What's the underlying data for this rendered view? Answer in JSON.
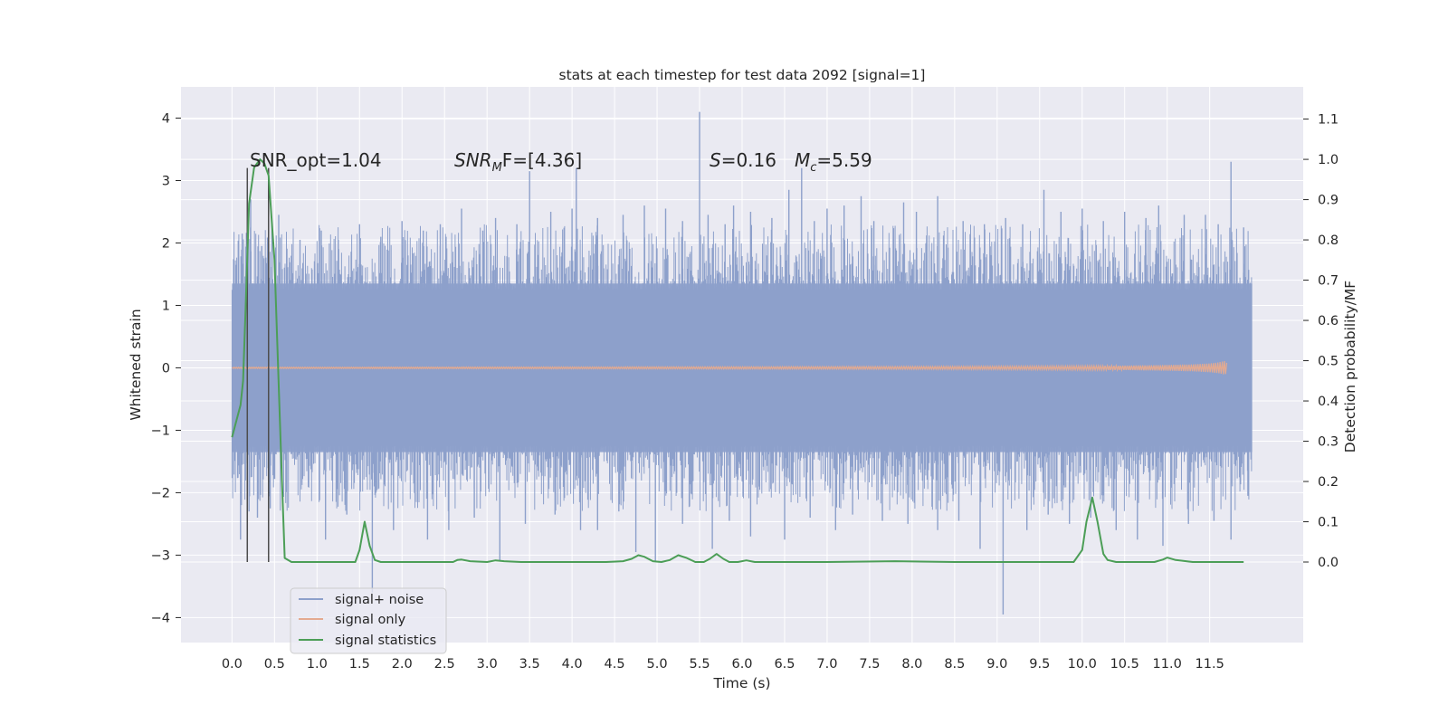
{
  "chart_data": {
    "type": "line",
    "title": "stats at each timestep for test data 2092 [signal=1]",
    "xlabel": "Time (s)",
    "ylabel": "Whitened strain",
    "y2label": "Detection probability/MF",
    "xlim": [
      -0.6,
      12.6
    ],
    "ylim": [
      -4.4,
      4.5
    ],
    "y2lim": [
      -0.2,
      1.18
    ],
    "grid": true,
    "legend_position": "lower-left",
    "x_ticks": [
      "0.0",
      "0.5",
      "1.0",
      "1.5",
      "2.0",
      "2.5",
      "3.0",
      "3.5",
      "4.0",
      "4.5",
      "5.0",
      "5.5",
      "6.0",
      "6.5",
      "7.0",
      "7.5",
      "8.0",
      "8.5",
      "9.0",
      "9.5",
      "10.0",
      "10.5",
      "11.0",
      "11.5"
    ],
    "y_ticks": [
      "4",
      "3",
      "2",
      "1",
      "0",
      "−1",
      "−2",
      "−3",
      "−4"
    ],
    "y2_ticks": [
      "1.1",
      "1.0",
      "0.9",
      "0.8",
      "0.7",
      "0.6",
      "0.5",
      "0.4",
      "0.3",
      "0.2",
      "0.1",
      "0.0"
    ],
    "annotations": {
      "snr_opt": "SNR_opt=1.04",
      "snr_mf_italic": "SNR",
      "snr_mf_sub": "M",
      "snr_mf_rest": "F=[4.36]",
      "s_italic": "S",
      "s_rest": "=0.16",
      "mc_italic": "M",
      "mc_sub": "c",
      "mc_rest": "=5.59"
    },
    "markers_x": [
      0.18,
      0.43
    ],
    "series": [
      {
        "name": "signal+ noise",
        "color": "#8da0cb",
        "duration": 12.0,
        "band": [
          -1.35,
          1.35
        ],
        "peaks": [
          [
            0.05,
            1.65
          ],
          [
            0.12,
            2.15
          ],
          [
            0.22,
            2.7
          ],
          [
            0.35,
            1.95
          ],
          [
            0.47,
            2.3
          ],
          [
            0.55,
            2.45
          ],
          [
            0.8,
            2.05
          ],
          [
            1.05,
            2.2
          ],
          [
            1.25,
            2.05
          ],
          [
            1.5,
            2.3
          ],
          [
            1.75,
            2.1
          ],
          [
            2.0,
            2.35
          ],
          [
            2.25,
            2.2
          ],
          [
            2.45,
            2.3
          ],
          [
            2.7,
            2.55
          ],
          [
            2.95,
            2.2
          ],
          [
            3.1,
            2.4
          ],
          [
            3.35,
            2.3
          ],
          [
            3.5,
            3.15
          ],
          [
            3.75,
            2.5
          ],
          [
            4.0,
            2.55
          ],
          [
            4.05,
            3.2
          ],
          [
            4.3,
            2.4
          ],
          [
            4.6,
            2.45
          ],
          [
            4.85,
            2.6
          ],
          [
            5.1,
            2.55
          ],
          [
            5.3,
            2.35
          ],
          [
            5.5,
            4.1
          ],
          [
            5.6,
            2.45
          ],
          [
            5.8,
            2.3
          ],
          [
            5.9,
            2.6
          ],
          [
            6.1,
            2.5
          ],
          [
            6.35,
            2.4
          ],
          [
            6.55,
            2.85
          ],
          [
            6.7,
            3.2
          ],
          [
            6.85,
            2.35
          ],
          [
            7.0,
            2.55
          ],
          [
            7.2,
            2.6
          ],
          [
            7.4,
            2.75
          ],
          [
            7.55,
            2.35
          ],
          [
            7.9,
            2.65
          ],
          [
            8.05,
            2.5
          ],
          [
            8.3,
            2.75
          ],
          [
            8.6,
            2.35
          ],
          [
            8.85,
            2.3
          ],
          [
            9.1,
            2.4
          ],
          [
            9.3,
            2.3
          ],
          [
            9.55,
            2.85
          ],
          [
            9.75,
            2.5
          ],
          [
            10.0,
            2.55
          ],
          [
            10.25,
            2.35
          ],
          [
            10.5,
            2.5
          ],
          [
            10.75,
            2.4
          ],
          [
            10.9,
            2.6
          ],
          [
            11.2,
            2.45
          ],
          [
            11.45,
            2.45
          ],
          [
            11.6,
            2.3
          ],
          [
            11.75,
            3.3
          ],
          [
            11.9,
            2.25
          ]
        ],
        "troughs": [
          [
            0.1,
            -2.75
          ],
          [
            0.2,
            -2.3
          ],
          [
            0.3,
            -2.4
          ],
          [
            0.45,
            -2.25
          ],
          [
            1.1,
            -2.75
          ],
          [
            1.35,
            -2.35
          ],
          [
            1.65,
            -3.6
          ],
          [
            1.9,
            -2.6
          ],
          [
            2.3,
            -2.75
          ],
          [
            2.55,
            -2.6
          ],
          [
            2.85,
            -2.4
          ],
          [
            3.15,
            -3.1
          ],
          [
            3.45,
            -2.5
          ],
          [
            3.8,
            -2.35
          ],
          [
            4.1,
            -2.6
          ],
          [
            4.3,
            -2.6
          ],
          [
            4.55,
            -2.3
          ],
          [
            4.75,
            -2.95
          ],
          [
            4.98,
            -3.1
          ],
          [
            5.3,
            -2.5
          ],
          [
            5.65,
            -2.9
          ],
          [
            5.85,
            -2.45
          ],
          [
            6.1,
            -2.7
          ],
          [
            6.5,
            -2.75
          ],
          [
            6.8,
            -2.4
          ],
          [
            7.1,
            -2.6
          ],
          [
            7.3,
            -2.35
          ],
          [
            7.65,
            -2.45
          ],
          [
            7.95,
            -2.5
          ],
          [
            8.3,
            -2.6
          ],
          [
            8.55,
            -2.45
          ],
          [
            8.8,
            -2.9
          ],
          [
            9.07,
            -3.95
          ],
          [
            9.35,
            -2.6
          ],
          [
            9.6,
            -2.35
          ],
          [
            9.85,
            -2.5
          ],
          [
            10.1,
            -2.4
          ],
          [
            10.4,
            -2.6
          ],
          [
            10.65,
            -2.75
          ],
          [
            10.95,
            -2.85
          ],
          [
            11.25,
            -2.5
          ],
          [
            11.55,
            -2.45
          ],
          [
            11.75,
            -2.75
          ],
          [
            11.95,
            -2.05
          ]
        ]
      },
      {
        "name": "signal only",
        "color": "#e4aa90",
        "x": [
          0.0,
          2.0,
          4.0,
          6.0,
          8.0,
          9.5,
          10.5,
          11.0,
          11.3,
          11.5,
          11.6,
          11.65,
          11.68,
          11.7
        ],
        "amp": [
          0.01,
          0.012,
          0.015,
          0.018,
          0.022,
          0.028,
          0.035,
          0.045,
          0.055,
          0.07,
          0.085,
          0.1,
          0.11,
          0.08
        ]
      },
      {
        "name": "signal statistics",
        "color": "#4c9e57",
        "x": [
          0.0,
          0.1,
          0.13,
          0.16,
          0.2,
          0.26,
          0.33,
          0.38,
          0.43,
          0.5,
          0.58,
          0.62,
          0.7,
          1.0,
          1.2,
          1.45,
          1.5,
          1.56,
          1.62,
          1.68,
          1.75,
          1.85,
          2.0,
          2.4,
          2.6,
          2.65,
          2.7,
          2.8,
          3.0,
          3.1,
          3.2,
          3.4,
          3.8,
          4.4,
          4.6,
          4.7,
          4.78,
          4.85,
          4.95,
          5.05,
          5.15,
          5.25,
          5.35,
          5.45,
          5.55,
          5.62,
          5.7,
          5.78,
          5.85,
          5.95,
          6.05,
          6.15,
          6.3,
          7.0,
          7.8,
          8.5,
          9.0,
          9.5,
          9.9,
          10.0,
          10.05,
          10.12,
          10.18,
          10.25,
          10.3,
          10.4,
          10.6,
          10.85,
          10.95,
          11.0,
          11.1,
          11.3,
          11.5,
          11.7,
          11.9
        ],
        "y": [
          0.31,
          0.39,
          0.45,
          0.63,
          0.89,
          0.98,
          1.0,
          0.99,
          0.96,
          0.75,
          0.25,
          0.01,
          0.0,
          0.0,
          0.0,
          0.0,
          0.03,
          0.1,
          0.04,
          0.005,
          0.0,
          0.0,
          0.0,
          0.0,
          0.0,
          0.005,
          0.006,
          0.002,
          0.0,
          0.004,
          0.002,
          0.0,
          0.0,
          0.0,
          0.002,
          0.008,
          0.017,
          0.013,
          0.002,
          0.0,
          0.005,
          0.017,
          0.01,
          0.0,
          0.0,
          0.008,
          0.02,
          0.008,
          0.0,
          0.0,
          0.004,
          0.0,
          0.0,
          0.0,
          0.002,
          0.0,
          0.0,
          0.0,
          0.0,
          0.03,
          0.1,
          0.16,
          0.1,
          0.02,
          0.005,
          0.0,
          0.0,
          0.0,
          0.006,
          0.011,
          0.005,
          0.0,
          0.0,
          0.0,
          0.0
        ]
      }
    ]
  }
}
